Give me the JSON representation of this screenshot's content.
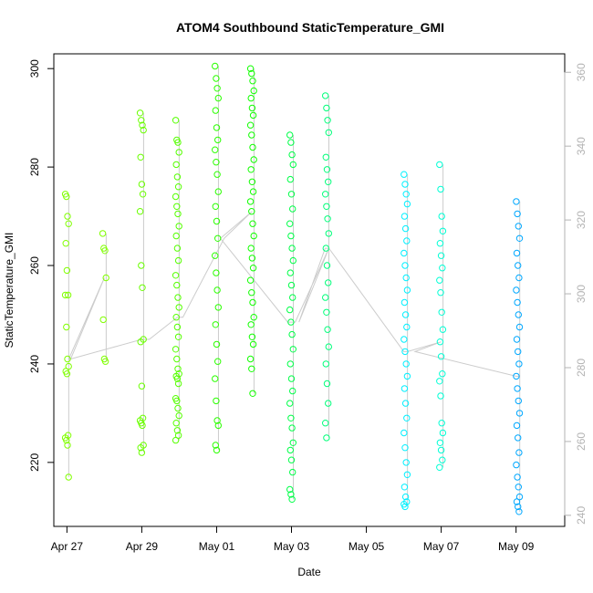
{
  "chart_data": {
    "type": "scatter",
    "title": "ATOM4 Southbound StaticTemperature_GMI",
    "xlabel": "Date",
    "ylabel": "StaticTemperature_GMI",
    "x_ticks": [
      "Apr 27",
      "Apr 29",
      "May 01",
      "May 03",
      "May 05",
      "May 07",
      "May 09"
    ],
    "x_tick_days": [
      0,
      2,
      4,
      6,
      8,
      10,
      12
    ],
    "xlim_days": [
      -0.35,
      13.3
    ],
    "y_ticks": [
      220,
      240,
      260,
      280,
      300
    ],
    "ylim": [
      207,
      303
    ],
    "y2_ticks": [
      240,
      260,
      280,
      300,
      320,
      340,
      360
    ],
    "y2lim": [
      237,
      365
    ],
    "marker": "open-circle",
    "color_scale": "yellow-green to cyan to blue by time",
    "series": [
      {
        "day": 0.0,
        "color": "#80ff00",
        "values": [
          274.5,
          274,
          270,
          268.5,
          264.5,
          259,
          254,
          254,
          247.5,
          241,
          239.5,
          238.5,
          238,
          225.5,
          225,
          224.5,
          223.5,
          217
        ]
      },
      {
        "day": 1.0,
        "color": "#80ff00",
        "values": [
          266.5,
          263.5,
          263,
          257.5,
          249,
          241,
          240.5
        ]
      },
      {
        "day": 2.0,
        "color": "#6aff00",
        "values": [
          291,
          289.5,
          288.5,
          287.5,
          282,
          276.5,
          274.5,
          271,
          260,
          255.5,
          245,
          244.5,
          235.5,
          229,
          228.5,
          228,
          227.5,
          223.5,
          223,
          222
        ]
      },
      {
        "day": 2.95,
        "color": "#55ff00",
        "values": [
          289.5,
          285.5,
          285,
          283,
          280.5,
          278,
          276,
          274,
          272,
          270.5,
          268,
          266,
          263.5,
          261,
          258,
          256,
          253.5,
          251.5,
          249.5,
          247.5,
          245.5,
          243,
          241,
          239,
          238,
          237.5,
          237,
          236,
          233,
          232.5,
          231,
          229.5,
          228,
          226.5,
          225.5,
          224.5
        ]
      },
      {
        "day": 4.0,
        "color": "#2bff00",
        "values": [
          300.5,
          298,
          296,
          294,
          291.5,
          288,
          285.5,
          283.5,
          281,
          278.5,
          275,
          272,
          269,
          265.5,
          262,
          258.5,
          255,
          251.5,
          248,
          244,
          240.5,
          237,
          232.5,
          228.5,
          227.5,
          223.5,
          222.5
        ]
      },
      {
        "day": 4.95,
        "color": "#11ff00",
        "values": [
          300,
          299,
          297.5,
          295.5,
          294,
          292,
          290.5,
          288.5,
          286.5,
          284,
          281.5,
          279.5,
          277,
          275,
          273,
          271,
          268.5,
          266,
          263.5,
          261.5,
          259.5,
          257,
          254.5,
          252.5,
          249.5,
          248,
          245.5,
          244,
          241,
          239,
          234
        ]
      },
      {
        "day": 6.0,
        "color": "#00ff48",
        "values": [
          286.5,
          285,
          282.5,
          280.5,
          277.5,
          274.5,
          271.5,
          268.5,
          266,
          263.5,
          261,
          258.5,
          256,
          253.5,
          251,
          248.5,
          246,
          243,
          240,
          237,
          234.5,
          232,
          229,
          227,
          224,
          222.5,
          220.5,
          218,
          214.5,
          213.5,
          212.5
        ]
      },
      {
        "day": 6.95,
        "color": "#00ff7a",
        "values": [
          294.5,
          292,
          289.5,
          287,
          282,
          279.5,
          277,
          274.5,
          272,
          269.5,
          266.5,
          263.5,
          260,
          256.5,
          253.5,
          250.5,
          247,
          243.5,
          240,
          236,
          232,
          228,
          225
        ]
      },
      {
        "day": 9.05,
        "color": "#00f0ff",
        "values": [
          278.5,
          276.5,
          274.5,
          272.5,
          270,
          267.5,
          265,
          262.5,
          260,
          257.5,
          255,
          252.5,
          250,
          247.5,
          245,
          242.5,
          240,
          237.5,
          235,
          232,
          229,
          226,
          223,
          220,
          217.5,
          215,
          213,
          212,
          211.5,
          211
        ]
      },
      {
        "day": 10.0,
        "color": "#00ffd5",
        "values": [
          280.5,
          275.5,
          270,
          267,
          264.5,
          262,
          259.5,
          257,
          254.5,
          250.5,
          247,
          244.5,
          241.5,
          238,
          236.5,
          233.5,
          228,
          226,
          224,
          222.5,
          220.5,
          219
        ]
      },
      {
        "day": 12.05,
        "color": "#00a8ff",
        "values": [
          273,
          270.5,
          268,
          265.5,
          262.5,
          260,
          257.5,
          255,
          252.5,
          250,
          247.5,
          245,
          242.5,
          240,
          237.5,
          235,
          232.5,
          230,
          227.5,
          225,
          222,
          219.5,
          217,
          215,
          213,
          212,
          211,
          210
        ]
      }
    ],
    "track_line": {
      "color": "#cccccc",
      "right_axis_values_label": "secondary axis (right)",
      "points_days": [
        0.05,
        0.05,
        0.1,
        1.0,
        1.0,
        0.05,
        0.1,
        0.1,
        2.0,
        2.0,
        2.2,
        2.95,
        2.95,
        3.1,
        4.2,
        4.95,
        4.95,
        4.1,
        4.1,
        5.9,
        6.0,
        6.1,
        7.0,
        6.9,
        6.2,
        7.0,
        9.0,
        9.1,
        9.1,
        10.0,
        10.0,
        9.3,
        12.0,
        12.05,
        12.1
      ]
    }
  }
}
